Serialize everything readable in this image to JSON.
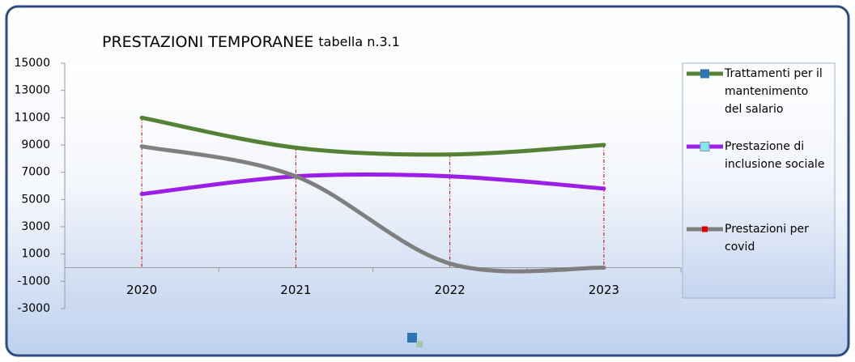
{
  "chart_data": {
    "type": "line",
    "title": "PRESTAZIONI TEMPORANEE",
    "subtitle": "tabella n.3.1",
    "categories": [
      "2020",
      "2021",
      "2022",
      "2023"
    ],
    "series": [
      {
        "name": "Trattamenti per il mantenimento del salario",
        "color": "#548235",
        "marker_color": "#2e75b6",
        "values": [
          11000,
          8800,
          8300,
          9000
        ]
      },
      {
        "name": "Prestazione di inclusione sociale",
        "color": "#9b1fe8",
        "marker_color": "#7fe8f0",
        "values": [
          5400,
          6700,
          6700,
          5800
        ]
      },
      {
        "name": "Prestazioni per covid",
        "color": "#7f7f7f",
        "marker_color": "#e00000",
        "values": [
          8900,
          6700,
          300,
          0
        ]
      }
    ],
    "ylim": [
      -3000,
      15000
    ],
    "yticks": [
      -3000,
      -1000,
      1000,
      3000,
      5000,
      7000,
      9000,
      11000,
      13000,
      15000
    ],
    "smooth": true,
    "drop_lines": true,
    "legend": "right"
  }
}
